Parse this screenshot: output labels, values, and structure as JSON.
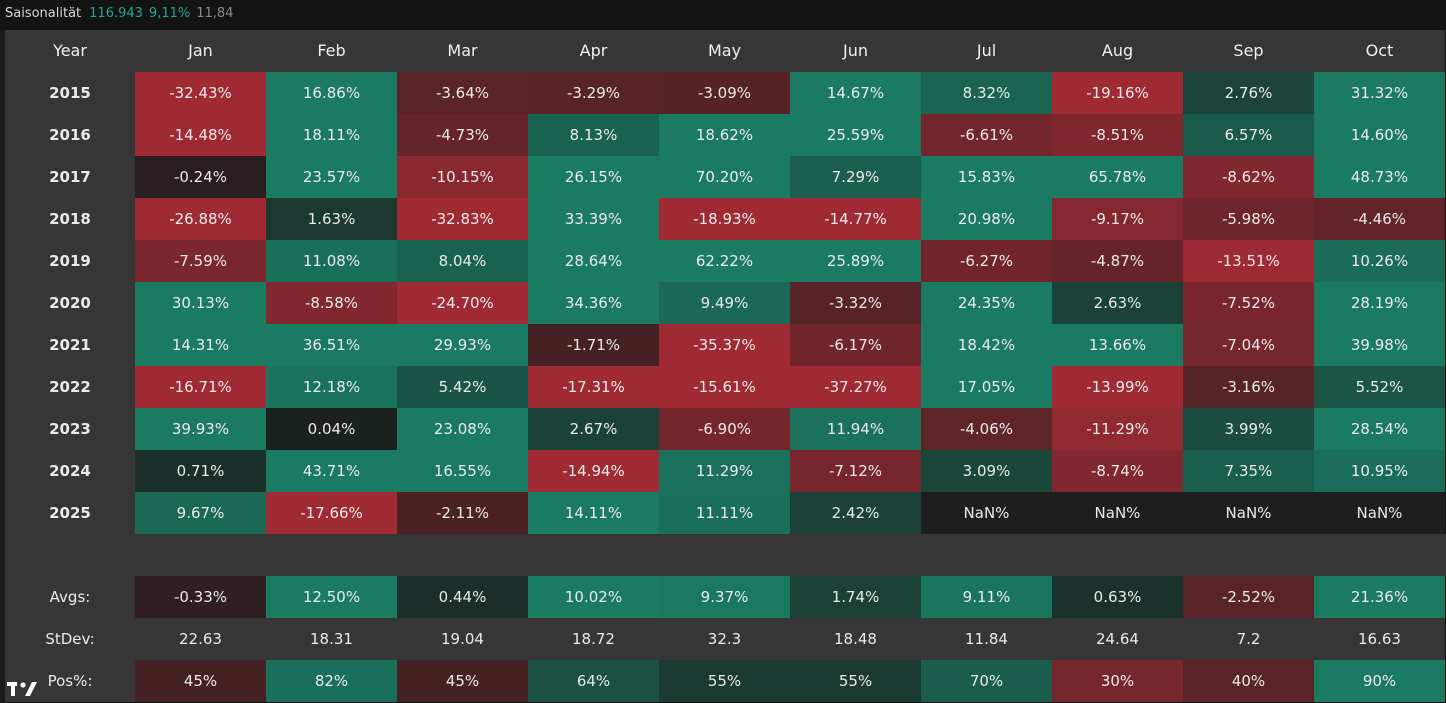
{
  "legend": {
    "title": "Saisonalität",
    "value1": "116.943",
    "value2": "9,11%",
    "value3": "11,84"
  },
  "table": {
    "year_header": "Year",
    "months": [
      "Jan",
      "Feb",
      "Mar",
      "Apr",
      "May",
      "Jun",
      "Jul",
      "Aug",
      "Sep",
      "Oct"
    ],
    "rows": [
      {
        "year": "2015",
        "values": [
          "-32.43%",
          "16.86%",
          "-3.64%",
          "-3.29%",
          "-3.09%",
          "14.67%",
          "8.32%",
          "-19.16%",
          "2.76%",
          "31.32%"
        ]
      },
      {
        "year": "2016",
        "values": [
          "-14.48%",
          "18.11%",
          "-4.73%",
          "8.13%",
          "18.62%",
          "25.59%",
          "-6.61%",
          "-8.51%",
          "6.57%",
          "14.60%"
        ]
      },
      {
        "year": "2017",
        "values": [
          "-0.24%",
          "23.57%",
          "-10.15%",
          "26.15%",
          "70.20%",
          "7.29%",
          "15.83%",
          "65.78%",
          "-8.62%",
          "48.73%"
        ]
      },
      {
        "year": "2018",
        "values": [
          "-26.88%",
          "1.63%",
          "-32.83%",
          "33.39%",
          "-18.93%",
          "-14.77%",
          "20.98%",
          "-9.17%",
          "-5.98%",
          "-4.46%"
        ]
      },
      {
        "year": "2019",
        "values": [
          "-7.59%",
          "11.08%",
          "8.04%",
          "28.64%",
          "62.22%",
          "25.89%",
          "-6.27%",
          "-4.87%",
          "-13.51%",
          "10.26%"
        ]
      },
      {
        "year": "2020",
        "values": [
          "30.13%",
          "-8.58%",
          "-24.70%",
          "34.36%",
          "9.49%",
          "-3.32%",
          "24.35%",
          "2.63%",
          "-7.52%",
          "28.19%"
        ]
      },
      {
        "year": "2021",
        "values": [
          "14.31%",
          "36.51%",
          "29.93%",
          "-1.71%",
          "-35.37%",
          "-6.17%",
          "18.42%",
          "13.66%",
          "-7.04%",
          "39.98%"
        ]
      },
      {
        "year": "2022",
        "values": [
          "-16.71%",
          "12.18%",
          "5.42%",
          "-17.31%",
          "-15.61%",
          "-37.27%",
          "17.05%",
          "-13.99%",
          "-3.16%",
          "5.52%"
        ]
      },
      {
        "year": "2023",
        "values": [
          "39.93%",
          "0.04%",
          "23.08%",
          "2.67%",
          "-6.90%",
          "11.94%",
          "-4.06%",
          "-11.29%",
          "3.99%",
          "28.54%"
        ]
      },
      {
        "year": "2024",
        "values": [
          "0.71%",
          "43.71%",
          "16.55%",
          "-14.94%",
          "11.29%",
          "-7.12%",
          "3.09%",
          "-8.74%",
          "7.35%",
          "10.95%"
        ]
      },
      {
        "year": "2025",
        "values": [
          "9.67%",
          "-17.66%",
          "-2.11%",
          "14.11%",
          "11.11%",
          "2.42%",
          "NaN%",
          "NaN%",
          "NaN%",
          "NaN%"
        ]
      }
    ],
    "avgs": {
      "label": "Avgs:",
      "values": [
        "-0.33%",
        "12.50%",
        "0.44%",
        "10.02%",
        "9.37%",
        "1.74%",
        "9.11%",
        "0.63%",
        "-2.52%",
        "21.36%"
      ]
    },
    "stdev": {
      "label": "StDev:",
      "values": [
        "22.63",
        "18.31",
        "19.04",
        "18.72",
        "32.3",
        "18.48",
        "11.84",
        "24.64",
        "7.2",
        "16.63"
      ]
    },
    "pos": {
      "label": "Pos%:",
      "values": [
        "45%",
        "82%",
        "45%",
        "64%",
        "55%",
        "55%",
        "70%",
        "30%",
        "40%",
        "90%"
      ]
    }
  },
  "colors": {
    "positive_strong": "#1a7a62",
    "negative_strong": "#a02a34",
    "neutral": "#1b1d1c",
    "nan": "#1e1e1e",
    "header_bg": "#363636",
    "accent": "#26a69a"
  },
  "logo": {
    "icon": "tradingview-logo-icon"
  }
}
